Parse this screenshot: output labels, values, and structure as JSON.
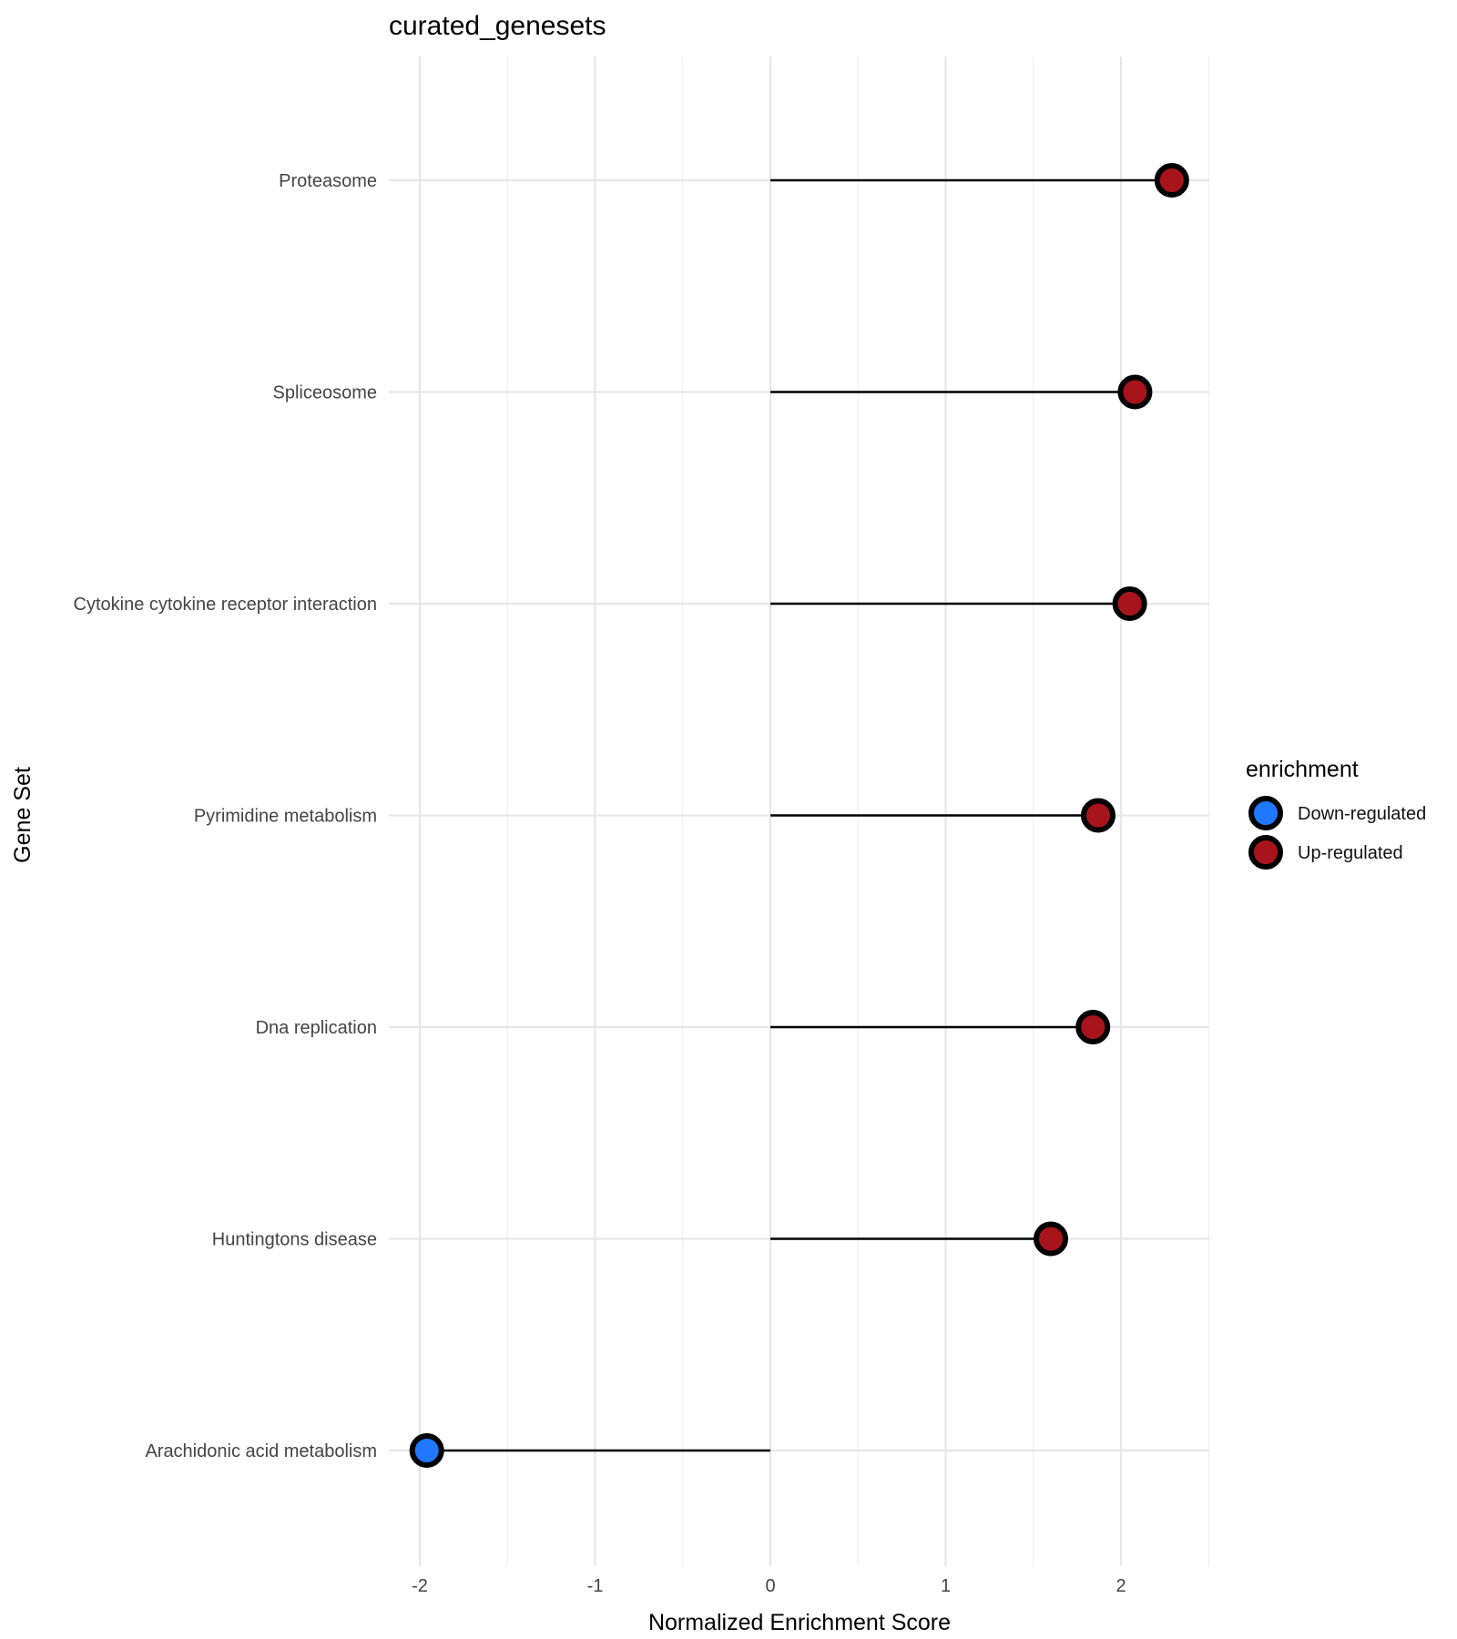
{
  "chart_data": {
    "type": "scatter",
    "subtype": "lollipop",
    "title": "curated_genesets",
    "xlabel": "Normalized Enrichment Score",
    "ylabel": "Gene Set",
    "xlim": [
      -2.05,
      2.5
    ],
    "x_ticks": [
      -2,
      -1,
      0,
      1,
      2
    ],
    "grid": true,
    "legend": {
      "title": "enrichment",
      "placement": "right",
      "entries": [
        {
          "label": "Down-regulated",
          "color": "#1f78ff"
        },
        {
          "label": "Up-regulated",
          "color": "#a8141c"
        }
      ]
    },
    "categories": [
      "Proteasome",
      "Spliceosome",
      "Cytokine cytokine receptor interaction",
      "Pyrimidine metabolism",
      "Dna replication",
      "Huntingtons disease",
      "Arachidonic acid metabolism"
    ],
    "values": [
      2.29,
      2.08,
      2.05,
      1.87,
      1.84,
      1.6,
      -1.96
    ],
    "enrichment": [
      "Up-regulated",
      "Up-regulated",
      "Up-regulated",
      "Up-regulated",
      "Up-regulated",
      "Up-regulated",
      "Down-regulated"
    ]
  }
}
